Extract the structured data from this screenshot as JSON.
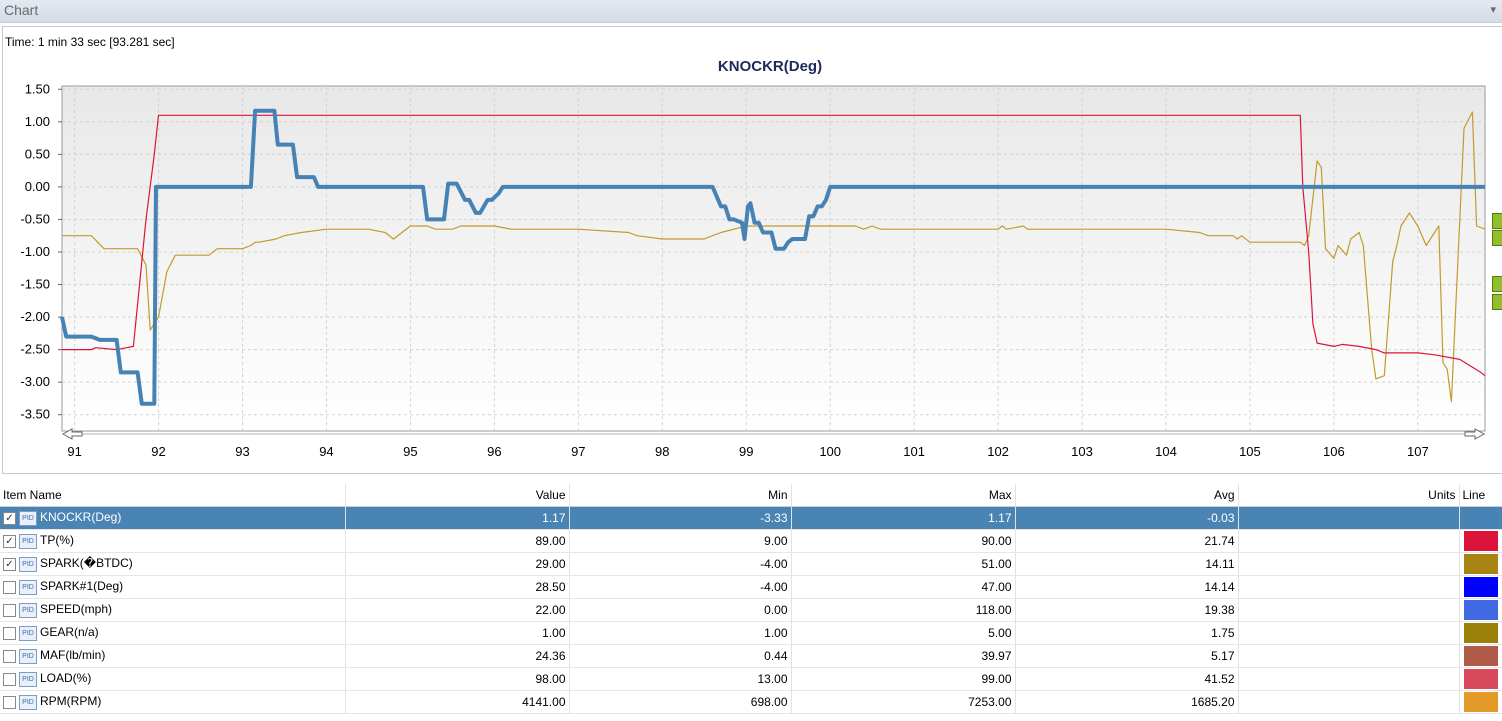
{
  "window": {
    "title": "Chart"
  },
  "chart": {
    "time_label": "Time: 1 min 33 sec [93.281 sec]"
  },
  "chart_data": {
    "type": "line",
    "title": "KNOCKR(Deg)",
    "xlim": [
      90.85,
      107.8
    ],
    "ylim": [
      -3.75,
      1.55
    ],
    "yticks": [
      "1.50",
      "1.00",
      "0.50",
      "0.00",
      "-0.50",
      "-1.00",
      "-1.50",
      "-2.00",
      "-2.50",
      "-3.00",
      "-3.50"
    ],
    "xticks": [
      "91",
      "92",
      "93",
      "94",
      "95",
      "96",
      "97",
      "98",
      "99",
      "100",
      "101",
      "102",
      "103",
      "104",
      "105",
      "106",
      "107"
    ],
    "grid": true,
    "series": [
      {
        "name": "KNOCKR(Deg)",
        "color": "#4682b4",
        "x": [
          90.85,
          90.9,
          91.2,
          91.3,
          91.5,
          91.55,
          91.75,
          91.8,
          91.95,
          91.97,
          92.5,
          93.1,
          93.15,
          93.38,
          93.42,
          93.6,
          93.65,
          93.85,
          93.9,
          94.5,
          95.15,
          95.2,
          95.4,
          95.45,
          95.55,
          95.65,
          95.7,
          95.78,
          95.83,
          95.92,
          95.97,
          96.05,
          96.1,
          98.6,
          98.7,
          98.75,
          98.8,
          98.85,
          98.95,
          98.98,
          99.02,
          99.05,
          99.1,
          99.15,
          99.2,
          99.3,
          99.35,
          99.45,
          99.5,
          99.55,
          99.7,
          99.75,
          99.8,
          99.85,
          99.9,
          99.95,
          100.0,
          100.5,
          102.0,
          104.0,
          106.0,
          107.8
        ],
        "y": [
          -2.0,
          -2.3,
          -2.3,
          -2.35,
          -2.35,
          -2.85,
          -2.85,
          -3.33,
          -3.33,
          0.0,
          0.0,
          0.0,
          1.17,
          1.17,
          0.65,
          0.65,
          0.15,
          0.15,
          0.0,
          0.0,
          0.0,
          -0.5,
          -0.5,
          0.05,
          0.05,
          -0.2,
          -0.2,
          -0.4,
          -0.4,
          -0.2,
          -0.2,
          -0.1,
          0.0,
          0.0,
          -0.3,
          -0.3,
          -0.5,
          -0.5,
          -0.55,
          -0.8,
          -0.3,
          -0.25,
          -0.55,
          -0.55,
          -0.7,
          -0.7,
          -0.95,
          -0.95,
          -0.85,
          -0.8,
          -0.8,
          -0.45,
          -0.45,
          -0.3,
          -0.3,
          -0.2,
          0.0,
          0.0,
          0.0,
          0.0,
          0.0,
          0.0
        ]
      },
      {
        "name": "TP(%)",
        "color": "#dc143c",
        "x": [
          90.85,
          91.2,
          91.25,
          91.5,
          91.7,
          91.85,
          91.95,
          92.0,
          92.05,
          93.0,
          95.0,
          100.0,
          103.0,
          105.6,
          105.63,
          105.7,
          105.75,
          105.8,
          106.0,
          106.1,
          106.3,
          106.5,
          106.6,
          107.0,
          107.2,
          107.5,
          107.75,
          107.8
        ],
        "y": [
          -2.5,
          -2.5,
          -2.47,
          -2.5,
          -2.45,
          -0.5,
          0.5,
          1.1,
          1.1,
          1.1,
          1.1,
          1.1,
          1.1,
          1.1,
          0.0,
          -1.0,
          -2.1,
          -2.4,
          -2.45,
          -2.42,
          -2.45,
          -2.5,
          -2.55,
          -2.55,
          -2.58,
          -2.65,
          -2.85,
          -2.9
        ]
      },
      {
        "name": "SPARK(�BTDC)",
        "color": "#c49a2c",
        "x": [
          90.85,
          91.2,
          91.35,
          91.6,
          91.75,
          91.85,
          91.9,
          92.0,
          92.1,
          92.2,
          92.6,
          92.7,
          93.0,
          93.1,
          93.15,
          93.2,
          93.4,
          93.5,
          93.7,
          94.0,
          94.5,
          94.7,
          94.8,
          94.9,
          95.0,
          95.2,
          95.3,
          95.5,
          95.6,
          96.0,
          96.2,
          97.0,
          97.6,
          97.7,
          98.0,
          98.5,
          98.6,
          98.7,
          99.0,
          99.5,
          100.0,
          100.3,
          100.4,
          100.5,
          100.6,
          101.0,
          102.0,
          102.05,
          102.1,
          102.3,
          102.35,
          102.5,
          102.6,
          102.8,
          103.0,
          104.0,
          104.4,
          104.5,
          104.8,
          104.85,
          104.9,
          105.0,
          105.3,
          105.6,
          105.65,
          105.7,
          105.8,
          105.85,
          105.9,
          106.0,
          106.05,
          106.15,
          106.2,
          106.3,
          106.35,
          106.45,
          106.5,
          106.6,
          106.7,
          106.75,
          106.8,
          106.9,
          107.0,
          107.1,
          107.15,
          107.25,
          107.3,
          107.35,
          107.4,
          107.5,
          107.55,
          107.65,
          107.7,
          107.8
        ],
        "y": [
          -0.75,
          -0.75,
          -0.95,
          -0.95,
          -0.95,
          -1.2,
          -2.2,
          -2.0,
          -1.3,
          -1.05,
          -1.05,
          -0.95,
          -0.95,
          -0.9,
          -0.85,
          -0.85,
          -0.8,
          -0.75,
          -0.7,
          -0.65,
          -0.65,
          -0.7,
          -0.8,
          -0.7,
          -0.6,
          -0.6,
          -0.65,
          -0.65,
          -0.6,
          -0.6,
          -0.65,
          -0.65,
          -0.7,
          -0.75,
          -0.8,
          -0.8,
          -0.75,
          -0.7,
          -0.6,
          -0.6,
          -0.6,
          -0.6,
          -0.65,
          -0.6,
          -0.65,
          -0.65,
          -0.65,
          -0.6,
          -0.65,
          -0.6,
          -0.65,
          -0.65,
          -0.65,
          -0.65,
          -0.65,
          -0.65,
          -0.7,
          -0.75,
          -0.75,
          -0.8,
          -0.75,
          -0.85,
          -0.85,
          -0.85,
          -0.9,
          -0.75,
          0.4,
          0.3,
          -0.95,
          -1.1,
          -0.9,
          -1.05,
          -0.8,
          -0.7,
          -0.9,
          -2.5,
          -2.95,
          -2.9,
          -1.15,
          -0.9,
          -0.6,
          -0.4,
          -0.6,
          -0.9,
          -0.8,
          -0.6,
          -2.7,
          -2.8,
          -3.3,
          -0.5,
          0.9,
          1.15,
          -0.6,
          -0.65
        ]
      }
    ]
  },
  "table": {
    "headers": [
      "Item Name",
      "Value",
      "Min",
      "Max",
      "Avg",
      "Units",
      "Line"
    ],
    "rows": [
      {
        "checked": true,
        "icon": "PID",
        "name": "KNOCKR(Deg)",
        "value": "1.17",
        "min": "-3.33",
        "max": "1.17",
        "avg": "-0.03",
        "units": "",
        "color": "#4682b4",
        "selected": true
      },
      {
        "checked": true,
        "icon": "PID",
        "name": "TP(%)",
        "value": "89.00",
        "min": "9.00",
        "max": "90.00",
        "avg": "21.74",
        "units": "",
        "color": "#dc143c"
      },
      {
        "checked": true,
        "icon": "PID",
        "name": "SPARK(�BTDC)",
        "value": "29.00",
        "min": "-4.00",
        "max": "51.00",
        "avg": "14.11",
        "units": "",
        "color": "#a88412"
      },
      {
        "checked": false,
        "icon": "PID",
        "name": "SPARK#1(Deg)",
        "value": "28.50",
        "min": "-4.00",
        "max": "47.00",
        "avg": "14.14",
        "units": "",
        "color": "#0000ff"
      },
      {
        "checked": false,
        "icon": "PID",
        "name": "SPEED(mph)",
        "value": "22.00",
        "min": "0.00",
        "max": "118.00",
        "avg": "19.38",
        "units": "",
        "color": "#4169e1"
      },
      {
        "checked": false,
        "icon": "PID",
        "name": "GEAR(n/a)",
        "value": "1.00",
        "min": "1.00",
        "max": "5.00",
        "avg": "1.75",
        "units": "",
        "color": "#9a8008"
      },
      {
        "checked": false,
        "icon": "PID",
        "name": "MAF(lb/min)",
        "value": "24.36",
        "min": "0.44",
        "max": "39.97",
        "avg": "5.17",
        "units": "",
        "color": "#b05a48"
      },
      {
        "checked": false,
        "icon": "PID",
        "name": "LOAD(%)",
        "value": "98.00",
        "min": "13.00",
        "max": "99.00",
        "avg": "41.52",
        "units": "",
        "color": "#d9495c"
      },
      {
        "checked": false,
        "icon": "PID",
        "name": "RPM(RPM)",
        "value": "4141.00",
        "min": "698.00",
        "max": "7253.00",
        "avg": "1685.20",
        "units": "",
        "color": "#e49a28"
      }
    ]
  }
}
